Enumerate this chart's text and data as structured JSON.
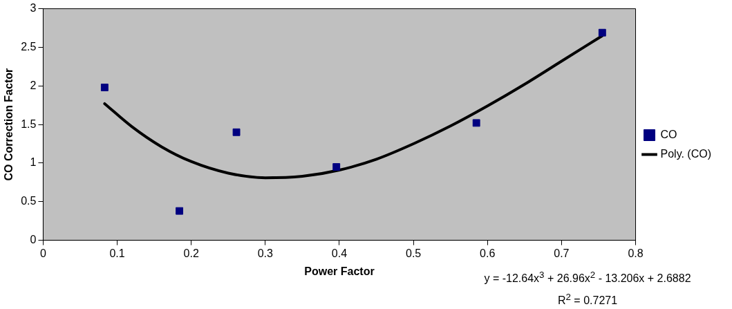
{
  "chart_data": {
    "type": "scatter",
    "xlabel": "Power Factor",
    "ylabel": "CO Correction Factor",
    "xlim": [
      0,
      0.8
    ],
    "xticks": [
      0,
      0.1,
      0.2,
      0.3,
      0.4,
      0.5,
      0.6,
      0.7,
      0.8
    ],
    "ylim": [
      0,
      3
    ],
    "yticks": [
      0,
      0.5,
      1,
      1.5,
      2,
      2.5,
      3
    ],
    "grid": false,
    "legend": "right",
    "series": [
      {
        "name": "CO",
        "marker": "square",
        "color": "#000080",
        "x": [
          0.083,
          0.184,
          0.261,
          0.396,
          0.585,
          0.755
        ],
        "values": [
          1.98,
          0.38,
          1.4,
          0.95,
          1.52,
          2.69
        ]
      },
      {
        "name": "Poly. (CO)",
        "type": "line",
        "marker": "none",
        "color": "#000000",
        "x": [
          0.083,
          0.12,
          0.16,
          0.2,
          0.25,
          0.3,
          0.35,
          0.4,
          0.45,
          0.5,
          0.55,
          0.6,
          0.65,
          0.7,
          0.755
        ],
        "values": [
          1.77,
          1.47,
          1.21,
          1.02,
          0.87,
          0.81,
          0.83,
          0.91,
          1.05,
          1.25,
          1.48,
          1.74,
          2.02,
          2.32,
          2.65
        ]
      }
    ],
    "annotations": [
      "y = -12.64x$^{3}$ + 26.96x$^{2}$ - 13.206x + 2.6882",
      "R$^{2}$ = 0.7271"
    ]
  }
}
